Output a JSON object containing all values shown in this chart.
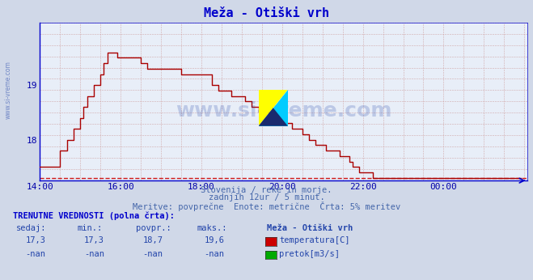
{
  "title": "Meža - Otiški vrh",
  "bg_color": "#d0d8e8",
  "plot_bg_color": "#e8eef8",
  "line_color": "#aa0000",
  "dashed_line_color": "#cc0000",
  "axis_color": "#0000cc",
  "tick_color": "#0000aa",
  "title_color": "#0000cc",
  "subtitle_color": "#4466aa",
  "watermark_color": "#2244aa",
  "xlabel_times": [
    "14:00",
    "16:00",
    "18:00",
    "20:00",
    "22:00",
    "00:00"
  ],
  "yticks": [
    18,
    19
  ],
  "ylim_min": 17.25,
  "ylim_max": 20.15,
  "xlim_min": 0,
  "xlim_max": 145,
  "subtitle1": "Slovenija / reke in morje.",
  "subtitle2": "zadnjih 12ur / 5 minut.",
  "subtitle3": "Meritve: povprečne  Enote: metrične  Črta: 5% meritev",
  "legend_title": "Meža - Otiški vrh",
  "legend_label1": "temperatura[C]",
  "legend_label2": "pretok[m3/s]",
  "legend_color1": "#cc0000",
  "legend_color2": "#00aa00",
  "table_header": "TRENUTNE VREDNOSTI (polna črta):",
  "col_headers": [
    "sedaj:",
    "min.:",
    "povpr.:",
    "maks.:"
  ],
  "row1_vals": [
    "17,3",
    "17,3",
    "18,7",
    "19,6"
  ],
  "row2_vals": [
    "-nan",
    "-nan",
    "-nan",
    "-nan"
  ],
  "watermark_text": "www.si-vreme.com",
  "temp_data": [
    17.5,
    17.5,
    17.5,
    17.5,
    17.5,
    17.5,
    17.8,
    17.8,
    18.0,
    18.0,
    18.2,
    18.2,
    18.4,
    18.6,
    18.8,
    18.8,
    19.0,
    19.0,
    19.2,
    19.4,
    19.6,
    19.6,
    19.6,
    19.5,
    19.5,
    19.5,
    19.5,
    19.5,
    19.5,
    19.5,
    19.4,
    19.4,
    19.3,
    19.3,
    19.3,
    19.3,
    19.3,
    19.3,
    19.3,
    19.3,
    19.3,
    19.3,
    19.2,
    19.2,
    19.2,
    19.2,
    19.2,
    19.2,
    19.2,
    19.2,
    19.2,
    19.0,
    19.0,
    18.9,
    18.9,
    18.9,
    18.9,
    18.8,
    18.8,
    18.8,
    18.8,
    18.7,
    18.7,
    18.6,
    18.6,
    18.5,
    18.5,
    18.5,
    18.5,
    18.4,
    18.4,
    18.4,
    18.3,
    18.3,
    18.3,
    18.2,
    18.2,
    18.2,
    18.1,
    18.1,
    18.0,
    18.0,
    17.9,
    17.9,
    17.9,
    17.8,
    17.8,
    17.8,
    17.8,
    17.7,
    17.7,
    17.7,
    17.6,
    17.5,
    17.5,
    17.4,
    17.4,
    17.4,
    17.4,
    17.3,
    17.3,
    17.3,
    17.3,
    17.3,
    17.3,
    17.3,
    17.3,
    17.3,
    17.3,
    17.3,
    17.3,
    17.3,
    17.3,
    17.3,
    17.3,
    17.3,
    17.3,
    17.3,
    17.3,
    17.3,
    17.3,
    17.3,
    17.3,
    17.3,
    17.3,
    17.3,
    17.3,
    17.3,
    17.3,
    17.3,
    17.3,
    17.3,
    17.3,
    17.3,
    17.3,
    17.3,
    17.3,
    17.3,
    17.3,
    17.3,
    17.3,
    17.3,
    17.3,
    17.3
  ]
}
